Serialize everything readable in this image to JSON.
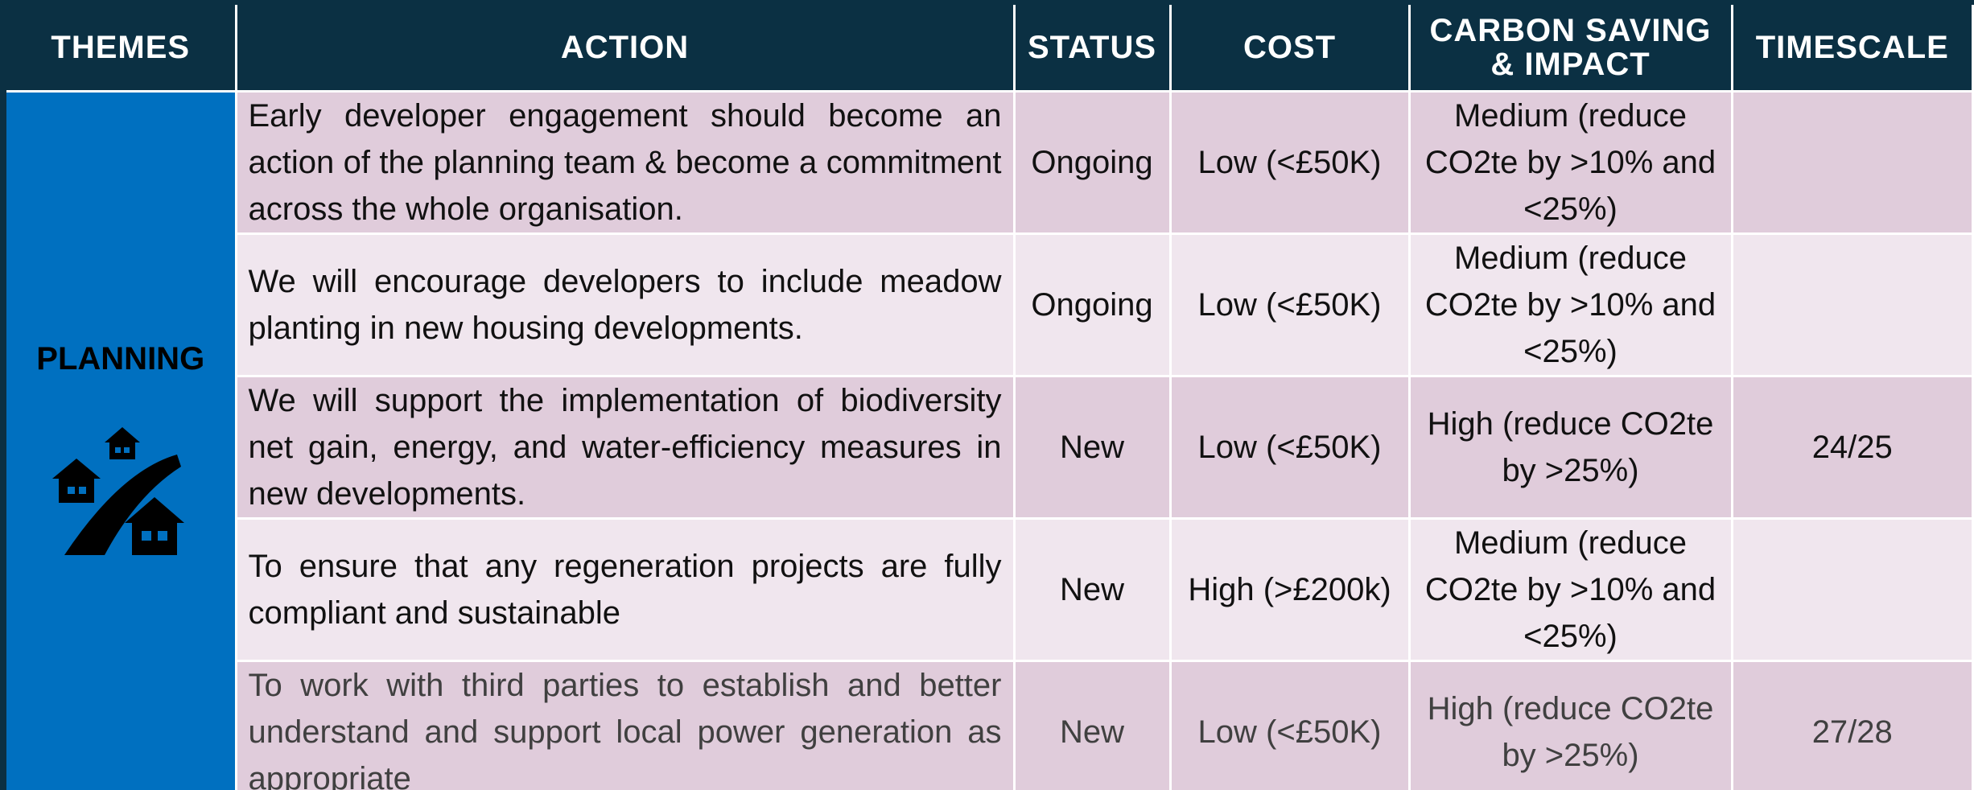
{
  "header": [
    "THEMES",
    "ACTION",
    "STATUS",
    "COST",
    "CARBON SAVING & IMPACT",
    "TIMESCALE"
  ],
  "theme": "PLANNING",
  "rows": [
    {
      "action": "Early developer engagement should become an action of the planning team & become a commitment across the whole organisation.",
      "status": "Ongoing",
      "cost": "Low (<£50K)",
      "carbon": "Medium (reduce CO2te by >10% and <25%)"
    },
    {
      "action": "We will encourage developers to include meadow planting in new housing developments.",
      "status": "Ongoing",
      "cost": "Low (<£50K)",
      "carbon": "Medium (reduce CO2te by >10% and <25%)"
    },
    {
      "action": "We will support the implementation of biodiversity net gain, energy, and water-efficiency measures in new developments.",
      "status": "New",
      "cost": "Low (<£50K)",
      "carbon": "High (reduce CO2te by >25%)",
      "timescale": "24/25"
    },
    {
      "action": "To ensure that any regeneration projects are fully compliant and sustainable",
      "status": "New",
      "cost": "High (>£200k)",
      "carbon": "Medium (reduce CO2te by >10% and <25%)"
    },
    {
      "action": "To work with third parties to establish and better understand and support local power generation as appropriate",
      "status": "New",
      "cost": "Low (<£50K)",
      "carbon": "High (reduce CO2te by >25%)",
      "timescale": "27/28"
    }
  ]
}
